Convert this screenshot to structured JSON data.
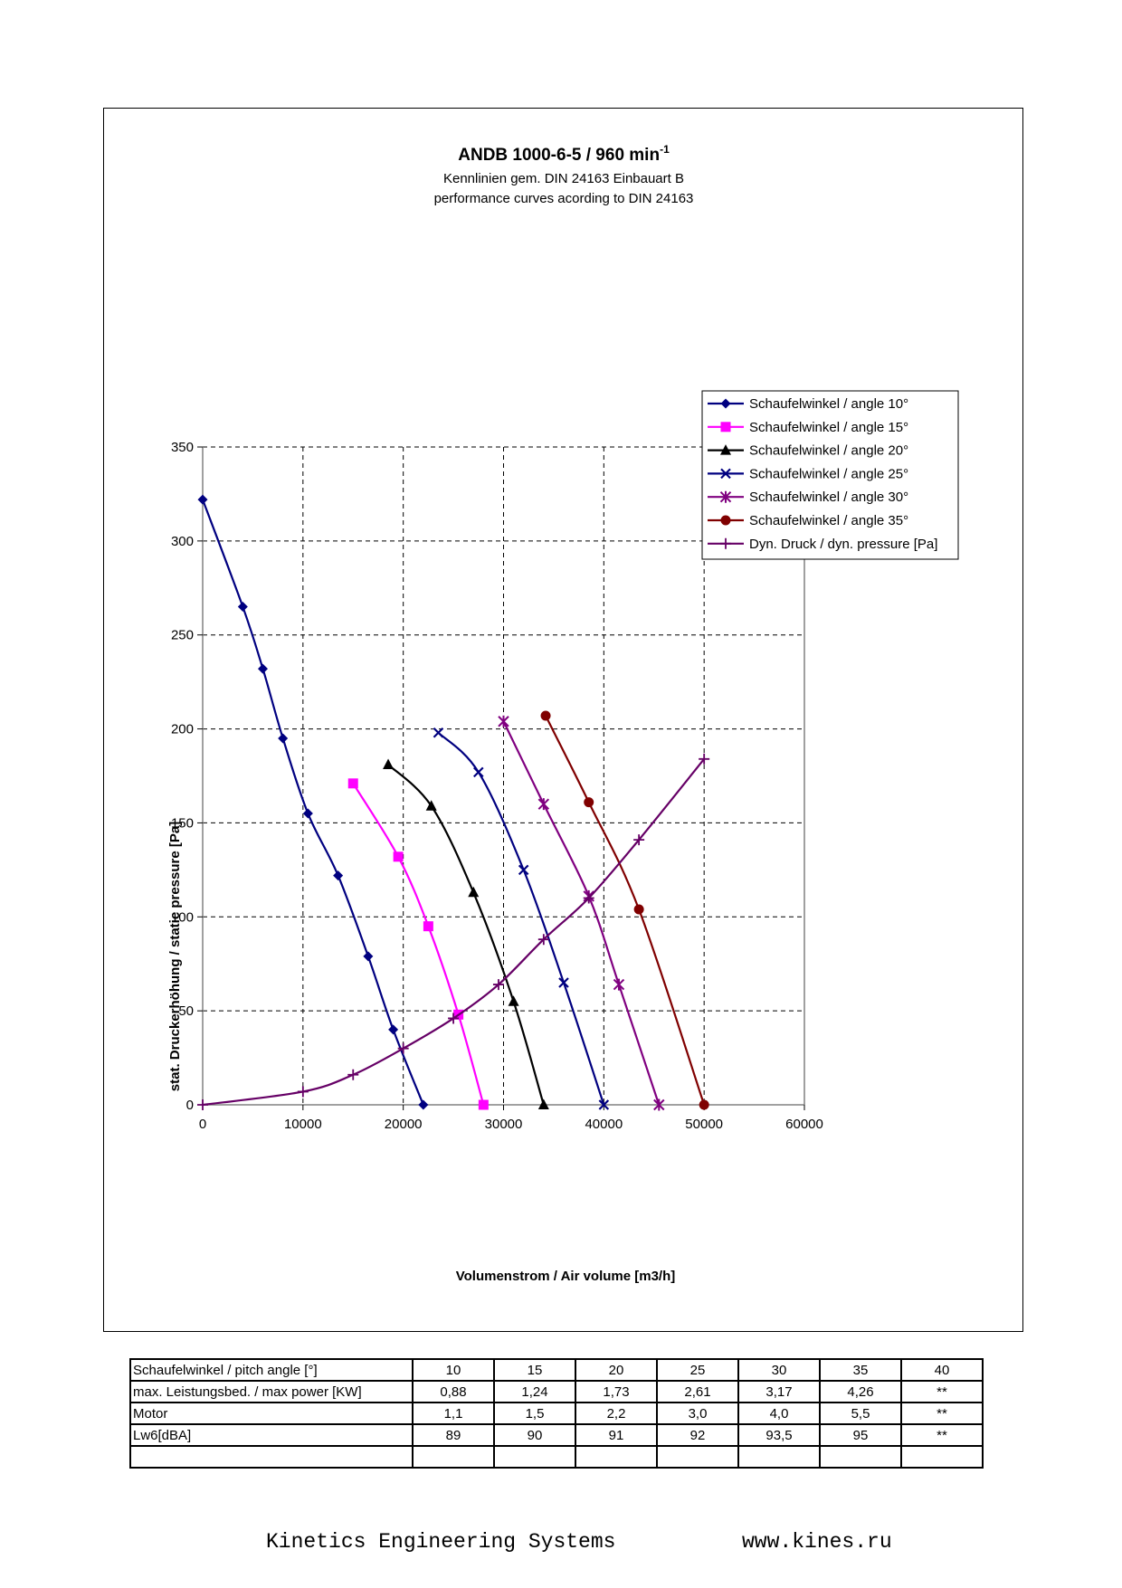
{
  "chart_data": {
    "type": "line",
    "title": "ANDB 1000-6-5 / 960 min",
    "title_superscript": "-1",
    "subtitle_lines": [
      "Kennlinien gem. DIN 24163 Einbauart B",
      "performance curves acording to DIN 24163"
    ],
    "xlabel": "Volumenstrom / Air volume [m3/h]",
    "ylabel": "stat. Druckerhöhung / static pressure [Pa]",
    "xlim": [
      0,
      60000
    ],
    "ylim": [
      0,
      350
    ],
    "x_ticks": [
      "0",
      "10000",
      "20000",
      "30000",
      "40000",
      "50000",
      "60000"
    ],
    "y_ticks": [
      "0",
      "50",
      "100",
      "150",
      "200",
      "250",
      "300",
      "350"
    ],
    "grid": true,
    "legend_position": "top-right",
    "series": [
      {
        "name": "Schaufelwinkel / angle 10°",
        "color": "#000080",
        "marker": "diamond",
        "x": [
          0,
          4000,
          6000,
          8000,
          10500,
          13500,
          16500,
          19000,
          22000
        ],
        "y": [
          322,
          265,
          232,
          195,
          155,
          122,
          79,
          40,
          0
        ]
      },
      {
        "name": "Schaufelwinkel / angle 15°",
        "color": "#ff00ff",
        "marker": "square",
        "x": [
          15000,
          19500,
          22500,
          25500,
          28000
        ],
        "y": [
          171,
          132,
          95,
          48,
          0
        ]
      },
      {
        "name": "Schaufelwinkel / angle 20°",
        "color": "#000000",
        "marker": "triangle",
        "x": [
          18500,
          22800,
          27000,
          31000,
          34000
        ],
        "y": [
          181,
          159,
          113,
          55,
          0
        ]
      },
      {
        "name": "Schaufelwinkel / angle 25°",
        "color": "#000080",
        "marker": "x",
        "x": [
          23500,
          27500,
          32000,
          36000,
          40000
        ],
        "y": [
          198,
          177,
          125,
          65,
          0
        ]
      },
      {
        "name": "Schaufelwinkel / angle 30°",
        "color": "#800080",
        "marker": "asterisk",
        "x": [
          30000,
          34000,
          38500,
          41500,
          45500
        ],
        "y": [
          204,
          160,
          111,
          64,
          0
        ]
      },
      {
        "name": "Schaufelwinkel / angle 35°",
        "color": "#800000",
        "marker": "circle",
        "x": [
          34200,
          38500,
          43500,
          50000
        ],
        "y": [
          207,
          161,
          104,
          0
        ]
      },
      {
        "name": "Dyn. Druck / dyn. pressure [Pa]",
        "color": "#660066",
        "marker": "plus",
        "x": [
          0,
          10000,
          15000,
          20000,
          25000,
          29500,
          34000,
          38500,
          43500,
          50000
        ],
        "y": [
          0,
          7,
          16,
          30,
          46,
          64,
          88,
          110,
          141,
          184
        ]
      }
    ]
  },
  "table": {
    "rows": [
      {
        "label": "Schaufelwinkel / pitch angle [°]",
        "values": [
          "10",
          "15",
          "20",
          "25",
          "30",
          "35",
          "40"
        ]
      },
      {
        "label": "max. Leistungsbed. / max power [KW]",
        "values": [
          "0,88",
          "1,24",
          "1,73",
          "2,61",
          "3,17",
          "4,26",
          "**"
        ]
      },
      {
        "label": "Motor",
        "values": [
          "1,1",
          "1,5",
          "2,2",
          "3,0",
          "4,0",
          "5,5",
          "**"
        ]
      },
      {
        "label": "Lw6[dBA]",
        "values": [
          "89",
          "90",
          "91",
          "92",
          "93,5",
          "95",
          "**"
        ]
      },
      {
        "label": "",
        "values": [
          "",
          "",
          "",
          "",
          "",
          "",
          ""
        ]
      }
    ]
  },
  "footer": {
    "company": "Kinetics Engineering Systems",
    "url": "www.kines.ru"
  }
}
